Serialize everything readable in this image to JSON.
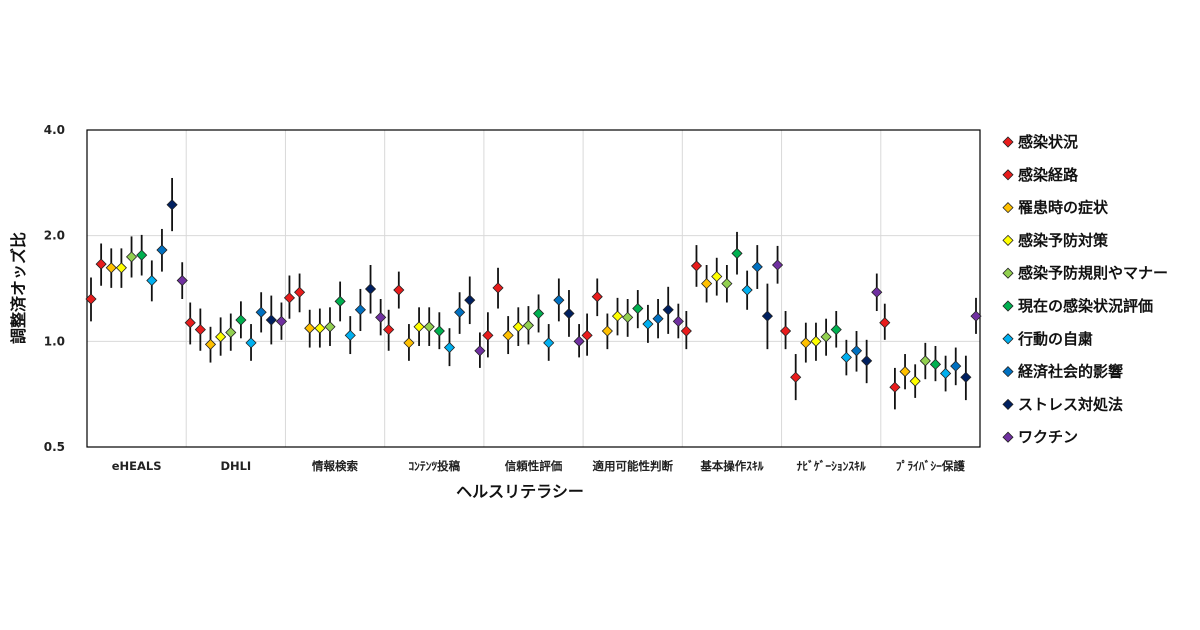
{
  "chart_data": {
    "type": "scatter",
    "xlabel": "ヘルスリテラシー",
    "ylabel": "調整済オッズ比",
    "yscale": "log2",
    "ylim": [
      0.5,
      4.0
    ],
    "yticks": [
      0.5,
      1.0,
      2.0,
      4.0
    ],
    "ytick_labels": [
      "0.5",
      "1.0",
      "2.0",
      "4.0"
    ],
    "grid": true,
    "legend_position": "right",
    "categories": [
      "eHEALS",
      "DHLI",
      "情報検索",
      "ｺﾝﾃﾝﾂ投稿",
      "信頼性評価",
      "適用可能性判断",
      "基本操作ｽｷﾙ",
      "ﾅﾋﾞｹﾞｰｼｮﾝｽｷﾙ",
      "ﾌﾟﾗｲﾊﾞｼｰ保護"
    ],
    "series": [
      {
        "name": "感染状況",
        "color": "#e81c1c",
        "values": [
          1.32,
          1.13,
          1.33,
          1.08,
          1.04,
          1.04,
          1.07,
          1.07,
          1.13
        ],
        "ci_low": [
          1.14,
          0.98,
          1.16,
          0.94,
          0.9,
          0.91,
          0.95,
          0.95,
          1.01
        ],
        "ci_high": [
          1.52,
          1.29,
          1.54,
          1.23,
          1.21,
          1.2,
          1.22,
          1.22,
          1.28
        ]
      },
      {
        "name": "感染経路",
        "color": "#e81c1c",
        "values": [
          1.66,
          1.08,
          1.38,
          1.4,
          1.42,
          1.34,
          1.64,
          0.79,
          0.74
        ],
        "ci_low": [
          1.44,
          0.94,
          1.21,
          1.24,
          1.24,
          1.18,
          1.43,
          0.68,
          0.64
        ],
        "ci_high": [
          1.9,
          1.24,
          1.56,
          1.58,
          1.62,
          1.51,
          1.88,
          0.92,
          0.84
        ]
      },
      {
        "name": "罹患時の症状",
        "color": "#ffc000",
        "values": [
          1.62,
          0.98,
          1.09,
          0.99,
          1.04,
          1.07,
          1.46,
          0.99,
          0.82
        ],
        "ci_low": [
          1.42,
          0.87,
          0.96,
          0.88,
          0.92,
          0.95,
          1.29,
          0.87,
          0.73
        ],
        "ci_high": [
          1.84,
          1.1,
          1.23,
          1.12,
          1.18,
          1.2,
          1.65,
          1.13,
          0.92
        ]
      },
      {
        "name": "感染予防対策",
        "color": "#ffff00",
        "values": [
          1.62,
          1.03,
          1.09,
          1.1,
          1.1,
          1.18,
          1.53,
          1.0,
          0.77
        ],
        "ci_low": [
          1.42,
          0.91,
          0.96,
          0.97,
          0.97,
          1.04,
          1.35,
          0.88,
          0.69
        ],
        "ci_high": [
          1.84,
          1.17,
          1.24,
          1.25,
          1.25,
          1.33,
          1.73,
          1.13,
          0.86
        ]
      },
      {
        "name": "感染予防規則やマナー",
        "color": "#92d050",
        "values": [
          1.74,
          1.06,
          1.1,
          1.1,
          1.11,
          1.17,
          1.46,
          1.03,
          0.88
        ],
        "ci_low": [
          1.52,
          0.94,
          0.97,
          0.97,
          0.98,
          1.03,
          1.29,
          0.91,
          0.78
        ],
        "ci_high": [
          1.99,
          1.2,
          1.25,
          1.25,
          1.26,
          1.32,
          1.65,
          1.16,
          0.99
        ]
      },
      {
        "name": "現在の感染状況評価",
        "color": "#00b050",
        "values": [
          1.76,
          1.15,
          1.3,
          1.07,
          1.2,
          1.24,
          1.78,
          1.08,
          0.86
        ],
        "ci_low": [
          1.54,
          1.02,
          1.14,
          0.95,
          1.06,
          1.09,
          1.55,
          0.96,
          0.77
        ],
        "ci_high": [
          2.01,
          1.3,
          1.48,
          1.21,
          1.36,
          1.4,
          2.05,
          1.22,
          0.97
        ]
      },
      {
        "name": "行動の自粛",
        "color": "#00b0f0",
        "values": [
          1.49,
          0.99,
          1.04,
          0.96,
          0.99,
          1.12,
          1.4,
          0.9,
          0.81
        ],
        "ci_low": [
          1.3,
          0.88,
          0.92,
          0.85,
          0.88,
          0.99,
          1.23,
          0.8,
          0.72
        ],
        "ci_high": [
          1.7,
          1.12,
          1.18,
          1.09,
          1.12,
          1.27,
          1.59,
          1.01,
          0.91
        ]
      },
      {
        "name": "経済社会的影響",
        "color": "#0070c0",
        "values": [
          1.82,
          1.21,
          1.23,
          1.21,
          1.31,
          1.16,
          1.63,
          0.94,
          0.85
        ],
        "ci_low": [
          1.58,
          1.06,
          1.07,
          1.05,
          1.14,
          1.02,
          1.41,
          0.82,
          0.75
        ],
        "ci_high": [
          2.09,
          1.38,
          1.41,
          1.38,
          1.51,
          1.32,
          1.88,
          1.07,
          0.96
        ]
      },
      {
        "name": "ストレス対処法",
        "color": "#002060",
        "values": [
          2.45,
          1.15,
          1.41,
          1.31,
          1.2,
          1.23,
          1.18,
          0.88,
          0.79
        ],
        "ci_low": [
          2.06,
          0.98,
          1.2,
          1.12,
          1.03,
          1.05,
          0.95,
          0.76,
          0.68
        ],
        "ci_high": [
          2.92,
          1.35,
          1.65,
          1.53,
          1.4,
          1.43,
          1.46,
          1.01,
          0.91
        ]
      },
      {
        "name": "ワクチン",
        "color": "#7030a0",
        "values": [
          1.49,
          1.14,
          1.17,
          0.94,
          1.0,
          1.14,
          1.65,
          1.38,
          1.18
        ],
        "ci_low": [
          1.32,
          1.01,
          1.04,
          0.84,
          0.9,
          1.02,
          1.46,
          1.22,
          1.05
        ],
        "ci_high": [
          1.68,
          1.29,
          1.32,
          1.06,
          1.12,
          1.28,
          1.87,
          1.56,
          1.33
        ]
      }
    ]
  }
}
